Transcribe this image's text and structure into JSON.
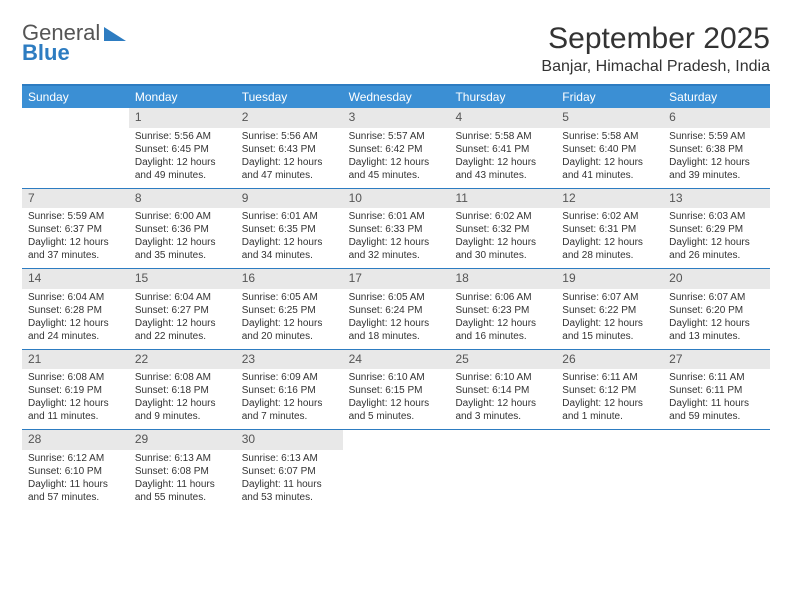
{
  "logo": {
    "line1": "General",
    "line2": "Blue"
  },
  "title": "September 2025",
  "location": "Banjar, Himachal Pradesh, India",
  "colors": {
    "header_bg": "#3b8fd4",
    "border": "#2d7cc1",
    "daynum_bg": "#e8e8e8",
    "background": "#ffffff"
  },
  "weekdays": [
    "Sunday",
    "Monday",
    "Tuesday",
    "Wednesday",
    "Thursday",
    "Friday",
    "Saturday"
  ],
  "weeks": [
    [
      {
        "n": "",
        "sr": "",
        "ss": "",
        "dl": ""
      },
      {
        "n": "1",
        "sr": "Sunrise: 5:56 AM",
        "ss": "Sunset: 6:45 PM",
        "dl": "Daylight: 12 hours and 49 minutes."
      },
      {
        "n": "2",
        "sr": "Sunrise: 5:56 AM",
        "ss": "Sunset: 6:43 PM",
        "dl": "Daylight: 12 hours and 47 minutes."
      },
      {
        "n": "3",
        "sr": "Sunrise: 5:57 AM",
        "ss": "Sunset: 6:42 PM",
        "dl": "Daylight: 12 hours and 45 minutes."
      },
      {
        "n": "4",
        "sr": "Sunrise: 5:58 AM",
        "ss": "Sunset: 6:41 PM",
        "dl": "Daylight: 12 hours and 43 minutes."
      },
      {
        "n": "5",
        "sr": "Sunrise: 5:58 AM",
        "ss": "Sunset: 6:40 PM",
        "dl": "Daylight: 12 hours and 41 minutes."
      },
      {
        "n": "6",
        "sr": "Sunrise: 5:59 AM",
        "ss": "Sunset: 6:38 PM",
        "dl": "Daylight: 12 hours and 39 minutes."
      }
    ],
    [
      {
        "n": "7",
        "sr": "Sunrise: 5:59 AM",
        "ss": "Sunset: 6:37 PM",
        "dl": "Daylight: 12 hours and 37 minutes."
      },
      {
        "n": "8",
        "sr": "Sunrise: 6:00 AM",
        "ss": "Sunset: 6:36 PM",
        "dl": "Daylight: 12 hours and 35 minutes."
      },
      {
        "n": "9",
        "sr": "Sunrise: 6:01 AM",
        "ss": "Sunset: 6:35 PM",
        "dl": "Daylight: 12 hours and 34 minutes."
      },
      {
        "n": "10",
        "sr": "Sunrise: 6:01 AM",
        "ss": "Sunset: 6:33 PM",
        "dl": "Daylight: 12 hours and 32 minutes."
      },
      {
        "n": "11",
        "sr": "Sunrise: 6:02 AM",
        "ss": "Sunset: 6:32 PM",
        "dl": "Daylight: 12 hours and 30 minutes."
      },
      {
        "n": "12",
        "sr": "Sunrise: 6:02 AM",
        "ss": "Sunset: 6:31 PM",
        "dl": "Daylight: 12 hours and 28 minutes."
      },
      {
        "n": "13",
        "sr": "Sunrise: 6:03 AM",
        "ss": "Sunset: 6:29 PM",
        "dl": "Daylight: 12 hours and 26 minutes."
      }
    ],
    [
      {
        "n": "14",
        "sr": "Sunrise: 6:04 AM",
        "ss": "Sunset: 6:28 PM",
        "dl": "Daylight: 12 hours and 24 minutes."
      },
      {
        "n": "15",
        "sr": "Sunrise: 6:04 AM",
        "ss": "Sunset: 6:27 PM",
        "dl": "Daylight: 12 hours and 22 minutes."
      },
      {
        "n": "16",
        "sr": "Sunrise: 6:05 AM",
        "ss": "Sunset: 6:25 PM",
        "dl": "Daylight: 12 hours and 20 minutes."
      },
      {
        "n": "17",
        "sr": "Sunrise: 6:05 AM",
        "ss": "Sunset: 6:24 PM",
        "dl": "Daylight: 12 hours and 18 minutes."
      },
      {
        "n": "18",
        "sr": "Sunrise: 6:06 AM",
        "ss": "Sunset: 6:23 PM",
        "dl": "Daylight: 12 hours and 16 minutes."
      },
      {
        "n": "19",
        "sr": "Sunrise: 6:07 AM",
        "ss": "Sunset: 6:22 PM",
        "dl": "Daylight: 12 hours and 15 minutes."
      },
      {
        "n": "20",
        "sr": "Sunrise: 6:07 AM",
        "ss": "Sunset: 6:20 PM",
        "dl": "Daylight: 12 hours and 13 minutes."
      }
    ],
    [
      {
        "n": "21",
        "sr": "Sunrise: 6:08 AM",
        "ss": "Sunset: 6:19 PM",
        "dl": "Daylight: 12 hours and 11 minutes."
      },
      {
        "n": "22",
        "sr": "Sunrise: 6:08 AM",
        "ss": "Sunset: 6:18 PM",
        "dl": "Daylight: 12 hours and 9 minutes."
      },
      {
        "n": "23",
        "sr": "Sunrise: 6:09 AM",
        "ss": "Sunset: 6:16 PM",
        "dl": "Daylight: 12 hours and 7 minutes."
      },
      {
        "n": "24",
        "sr": "Sunrise: 6:10 AM",
        "ss": "Sunset: 6:15 PM",
        "dl": "Daylight: 12 hours and 5 minutes."
      },
      {
        "n": "25",
        "sr": "Sunrise: 6:10 AM",
        "ss": "Sunset: 6:14 PM",
        "dl": "Daylight: 12 hours and 3 minutes."
      },
      {
        "n": "26",
        "sr": "Sunrise: 6:11 AM",
        "ss": "Sunset: 6:12 PM",
        "dl": "Daylight: 12 hours and 1 minute."
      },
      {
        "n": "27",
        "sr": "Sunrise: 6:11 AM",
        "ss": "Sunset: 6:11 PM",
        "dl": "Daylight: 11 hours and 59 minutes."
      }
    ],
    [
      {
        "n": "28",
        "sr": "Sunrise: 6:12 AM",
        "ss": "Sunset: 6:10 PM",
        "dl": "Daylight: 11 hours and 57 minutes."
      },
      {
        "n": "29",
        "sr": "Sunrise: 6:13 AM",
        "ss": "Sunset: 6:08 PM",
        "dl": "Daylight: 11 hours and 55 minutes."
      },
      {
        "n": "30",
        "sr": "Sunrise: 6:13 AM",
        "ss": "Sunset: 6:07 PM",
        "dl": "Daylight: 11 hours and 53 minutes."
      },
      {
        "n": "",
        "sr": "",
        "ss": "",
        "dl": ""
      },
      {
        "n": "",
        "sr": "",
        "ss": "",
        "dl": ""
      },
      {
        "n": "",
        "sr": "",
        "ss": "",
        "dl": ""
      },
      {
        "n": "",
        "sr": "",
        "ss": "",
        "dl": ""
      }
    ]
  ]
}
